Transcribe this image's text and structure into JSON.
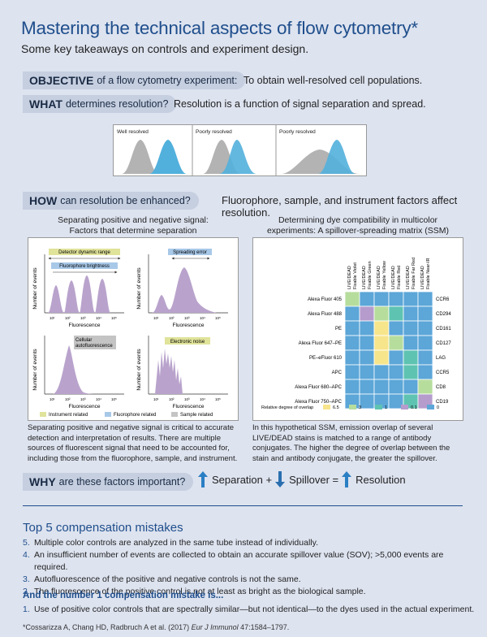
{
  "header": {
    "title": "Mastering the technical aspects of flow cytometry*",
    "subtitle": "Some key takeaways on controls and experiment design."
  },
  "objective": {
    "key": "OBJECTIVE",
    "rest": "of a flow cytometry experiment:",
    "answer": "To obtain well-resolved cell populations."
  },
  "what": {
    "key": "WHAT",
    "rest": "determines resolution?",
    "answer": "Resolution is a function of signal separation and spread."
  },
  "resolution_panels": [
    "Well resolved",
    "Poorly resolved",
    "Poorly resolved"
  ],
  "how": {
    "key": "HOW",
    "rest": "can resolution be enhanced?",
    "answer": "Fluorophore, sample, and instrument factors affect resolution."
  },
  "left_panel": {
    "title_line1": "Separating positive and negative signal:",
    "title_line2": "Factors that determine separation",
    "labels": {
      "detector_range": "Detector dynamic range",
      "brightness": "Fluorophore brightness",
      "spreading": "Spreading error",
      "autofluorescence_1": "Cellular",
      "autofluorescence_2": "autofluorescence",
      "noise": "Electronic noise"
    },
    "ylabel": "Number of events",
    "xlabel": "Fluorescence",
    "ticks": [
      "10¹",
      "10²",
      "10³",
      "10⁴",
      "10⁵"
    ],
    "legend": [
      "Instrument related",
      "Fluorophore related",
      "Sample related"
    ],
    "colors": {
      "instrument": "#e0e39a",
      "fluorophore": "#a8c8e8",
      "sample": "#c4c4c4",
      "hist": "#b9a3cc"
    },
    "caption": "Separating positive and negative signal is critical to accurate detection and interpretation of results. There are multiple sources of fluorescent signal that need to be accounted for, including those from the fluorophore, sample, and instrument."
  },
  "right_panel": {
    "title_line1": "Determining dye compatibility in multicolor",
    "title_line2": "experiments: A spillover-spreading matrix (SSM)",
    "columns": [
      [
        "LIVE/DEAD",
        "Fixable Violet"
      ],
      [
        "LIVE/DEAD",
        "Fixable Green"
      ],
      [
        "LIVE/DEAD",
        "Fixable Yellow"
      ],
      [
        "LIVE/DEAD",
        "Fixable Red"
      ],
      [
        "LIVE/DEAD",
        "Fixable Far Red"
      ],
      [
        "LIVE/DEAD",
        "Fixable Near-IR"
      ]
    ],
    "rows": [
      {
        "fluor": "Alexa Fluor 405",
        "marker": "CCR6",
        "cells": [
          2,
          0,
          0,
          0,
          0,
          0
        ]
      },
      {
        "fluor": "Alexa Fluor 488",
        "marker": "CD294",
        "cells": [
          0,
          3,
          2,
          4,
          0,
          0
        ]
      },
      {
        "fluor": "PE",
        "marker": "CD161",
        "cells": [
          0,
          0,
          1,
          0,
          0,
          0
        ]
      },
      {
        "fluor": "Alexa Fluor 647–PE",
        "marker": "CD127",
        "cells": [
          0,
          0,
          1,
          2,
          0,
          0
        ]
      },
      {
        "fluor": "PE–eFluor 610",
        "marker": "LAG",
        "cells": [
          0,
          0,
          1,
          0,
          4,
          0
        ]
      },
      {
        "fluor": "APC",
        "marker": "CCR5",
        "cells": [
          0,
          0,
          0,
          0,
          4,
          0
        ]
      },
      {
        "fluor": "Alexa Fluor 680–APC",
        "marker": "CD8",
        "cells": [
          0,
          0,
          0,
          0,
          0,
          2
        ]
      },
      {
        "fluor": "Alexa Fluor 750–APC",
        "marker": "CD19",
        "cells": [
          0,
          0,
          0,
          0,
          4,
          3
        ]
      }
    ],
    "legend_label": "Relative degree of overlap",
    "legend": [
      {
        "label": "6.5",
        "color": "#f7e58c"
      },
      {
        "label": "3",
        "color": "#b7dd9d"
      },
      {
        "label": "1",
        "color": "#5fc3b2"
      },
      {
        "label": "0.1",
        "color": "#b59ccd"
      },
      {
        "label": "0",
        "color": "#5ca6d8"
      }
    ],
    "caption": "In this hypothetical SSM, emission overlap of several LIVE/DEAD stains is matched to a range of antibody conjugates. The higher the degree of overlap between the stain and antibody conjugate, the greater the spillover."
  },
  "why": {
    "key": "WHY",
    "rest": "are these factors important?",
    "equation": {
      "term1": "Separation +",
      "term2": "Spillover =",
      "term3": "Resolution"
    },
    "colors": {
      "up": "#2a7fc4",
      "down": "#2a6fb0"
    }
  },
  "mistakes": {
    "title": "Top 5 compensation mistakes",
    "items": [
      {
        "num": "5.",
        "text": "Multiple color controls are analyzed in the same tube instead of individually."
      },
      {
        "num": "4.",
        "text": "An insufficient number of events are collected to obtain an accurate spillover value (SOV); >5,000 events are required."
      },
      {
        "num": "3.",
        "text": "Autofluorescence of the positive and negative controls is not the same."
      },
      {
        "num": "2.",
        "text": "The fluorescence of the positive control is not at least as bright as the biological sample."
      }
    ],
    "number1_title": "And the number 1 compensation mistake is...",
    "number1": {
      "num": "1.",
      "text": "Use of positive color controls that are spectrally similar—but not identical—to the dyes used in the actual experiment."
    }
  },
  "reference": {
    "text": "*Cossarizza A, Chang HD, Radbruch A et al. (2017)",
    "journal": "Eur J Immunol",
    "rest": "47:1584–1797."
  }
}
